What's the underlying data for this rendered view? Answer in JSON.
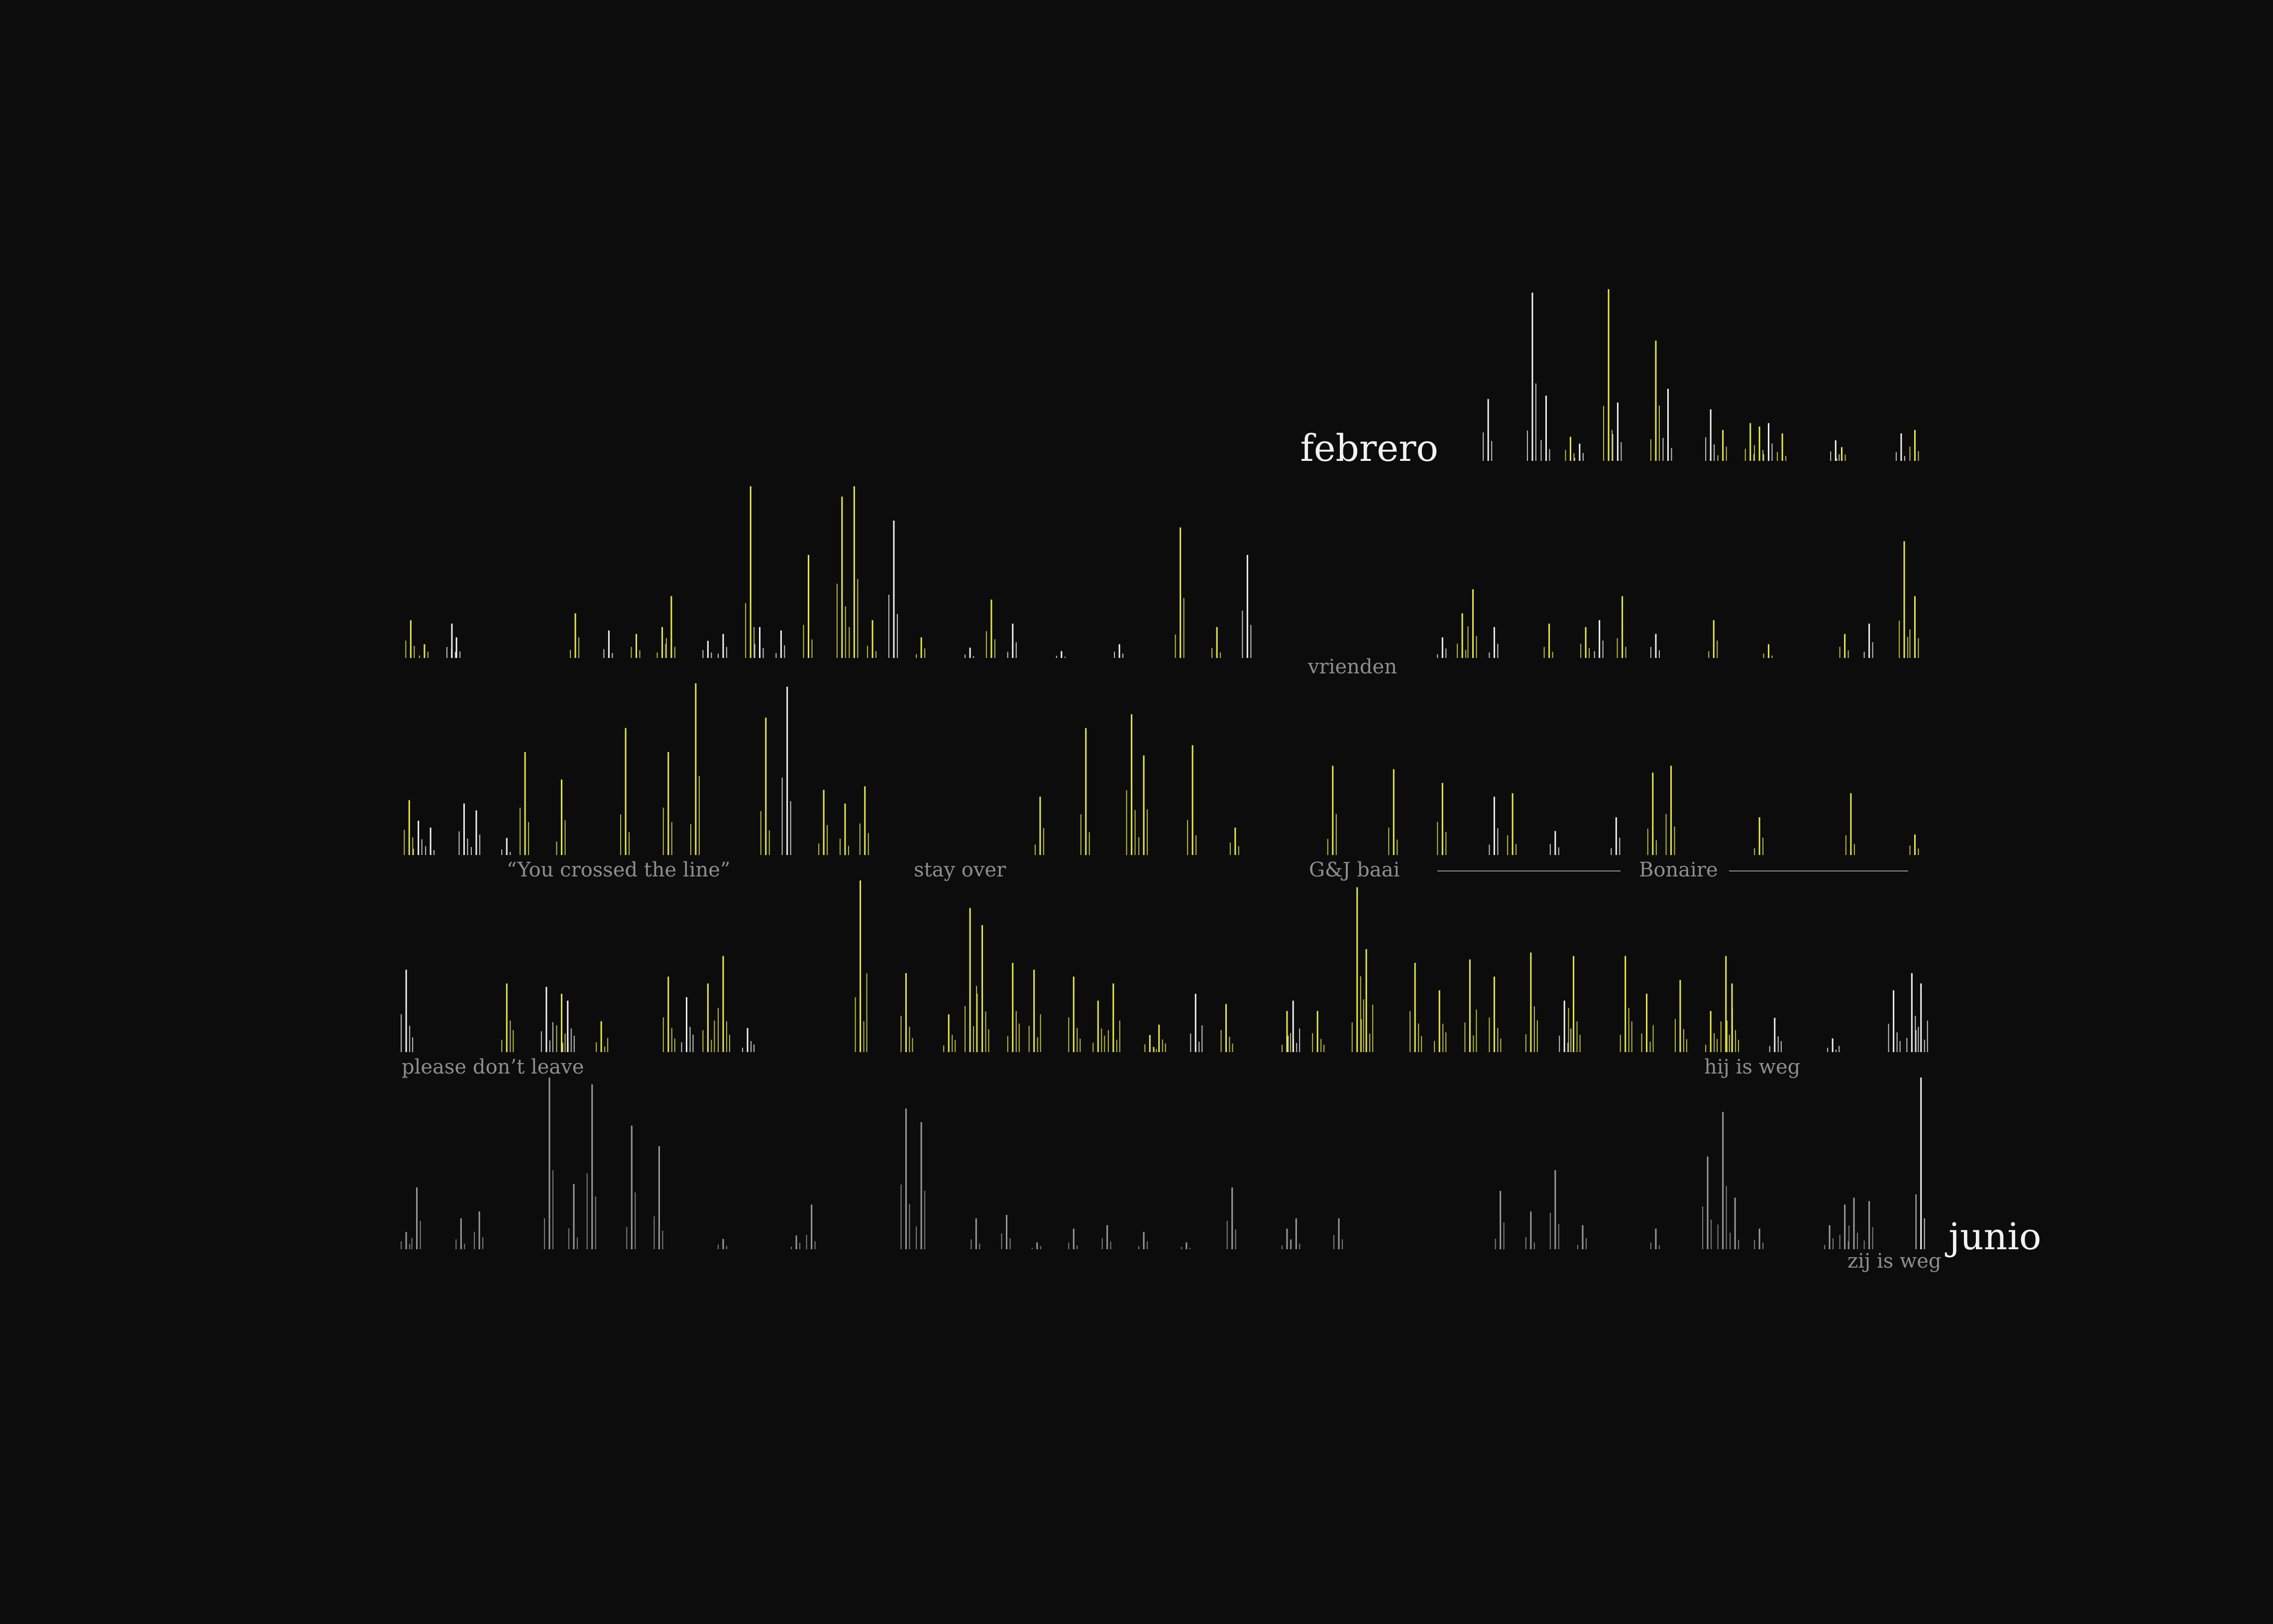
{
  "labels": {
    "month_start": "febrero",
    "month_end": "junio",
    "annotations": {
      "vrienden": "vrienden",
      "crossed": "“You crossed the line”",
      "stay_over": "stay over",
      "gj_baai": "G&J baai",
      "bonaire": "Bonaire",
      "please": "please don’t leave",
      "hij": "hij is weg",
      "zij": "zij is weg"
    }
  },
  "colors": {
    "background": "#0c0c0c",
    "yellow": "#e6e84a",
    "white": "#f0f0f0",
    "grey": "#9a9a9a",
    "label": "#8e8e8e",
    "month": "#f2f2f2"
  },
  "chart_data": {
    "type": "bar",
    "description": "Timeline barcode of daily activity from febrero to junio; each row is a span of days, each spike an event (height = intensity 0-100).",
    "rows": [
      {
        "start": 0.7,
        "spikes": [
          [
            0.712,
            36,
            "w"
          ],
          [
            0.741,
            98,
            "w"
          ],
          [
            0.75,
            38,
            "w"
          ],
          [
            0.766,
            14,
            "y"
          ],
          [
            0.772,
            10,
            "w"
          ],
          [
            0.791,
            100,
            "y"
          ],
          [
            0.797,
            34,
            "w"
          ],
          [
            0.822,
            70,
            "y"
          ],
          [
            0.83,
            42,
            "w"
          ],
          [
            0.858,
            30,
            "w"
          ],
          [
            0.866,
            18,
            "y"
          ],
          [
            0.884,
            22,
            "y"
          ],
          [
            0.89,
            20,
            "y"
          ],
          [
            0.896,
            22,
            "w"
          ],
          [
            0.905,
            16,
            "y"
          ],
          [
            0.94,
            12,
            "w"
          ],
          [
            0.944,
            8,
            "y"
          ],
          [
            0.983,
            16,
            "w"
          ],
          [
            0.992,
            18,
            "y"
          ]
        ]
      },
      {
        "start": 0.0,
        "spikes": [
          [
            0.005,
            22,
            "y"
          ],
          [
            0.014,
            8,
            "y"
          ],
          [
            0.032,
            20,
            "w"
          ],
          [
            0.035,
            12,
            "w"
          ],
          [
            0.113,
            26,
            "y"
          ],
          [
            0.135,
            16,
            "w"
          ],
          [
            0.153,
            14,
            "y"
          ],
          [
            0.17,
            18,
            "y"
          ],
          [
            0.176,
            36,
            "y"
          ],
          [
            0.2,
            10,
            "w"
          ],
          [
            0.21,
            14,
            "w"
          ],
          [
            0.228,
            100,
            "y"
          ],
          [
            0.234,
            18,
            "w"
          ],
          [
            0.248,
            16,
            "w"
          ],
          [
            0.266,
            60,
            "y"
          ],
          [
            0.288,
            94,
            "y"
          ],
          [
            0.296,
            100,
            "y"
          ],
          [
            0.308,
            22,
            "y"
          ],
          [
            0.322,
            80,
            "w"
          ],
          [
            0.34,
            12,
            "y"
          ],
          [
            0.372,
            6,
            "w"
          ],
          [
            0.386,
            34,
            "y"
          ],
          [
            0.4,
            20,
            "w"
          ],
          [
            0.432,
            4,
            "w"
          ],
          [
            0.47,
            8,
            "w"
          ],
          [
            0.51,
            76,
            "y"
          ],
          [
            0.534,
            18,
            "y"
          ],
          [
            0.554,
            60,
            "w"
          ],
          [
            0.682,
            12,
            "w"
          ],
          [
            0.695,
            26,
            "y"
          ],
          [
            0.702,
            40,
            "y"
          ],
          [
            0.716,
            18,
            "w"
          ],
          [
            0.752,
            20,
            "y"
          ],
          [
            0.776,
            18,
            "y"
          ],
          [
            0.785,
            22,
            "w"
          ],
          [
            0.8,
            36,
            "y"
          ],
          [
            0.822,
            14,
            "w"
          ],
          [
            0.86,
            22,
            "y"
          ],
          [
            0.896,
            8,
            "y"
          ],
          [
            0.946,
            14,
            "y"
          ],
          [
            0.962,
            20,
            "w"
          ],
          [
            0.985,
            68,
            "y"
          ],
          [
            0.992,
            36,
            "y"
          ]
        ]
      },
      {
        "start": 0.0,
        "spikes": [
          [
            0.004,
            32,
            "y"
          ],
          [
            0.01,
            20,
            "w"
          ],
          [
            0.018,
            16,
            "w"
          ],
          [
            0.04,
            30,
            "w"
          ],
          [
            0.048,
            26,
            "w"
          ],
          [
            0.068,
            10,
            "w"
          ],
          [
            0.08,
            60,
            "y"
          ],
          [
            0.104,
            44,
            "y"
          ],
          [
            0.146,
            74,
            "y"
          ],
          [
            0.174,
            60,
            "y"
          ],
          [
            0.192,
            100,
            "y"
          ],
          [
            0.238,
            80,
            "y"
          ],
          [
            0.252,
            98,
            "w"
          ],
          [
            0.276,
            38,
            "y"
          ],
          [
            0.29,
            30,
            "y"
          ],
          [
            0.303,
            40,
            "y"
          ],
          [
            0.418,
            34,
            "y"
          ],
          [
            0.448,
            74,
            "y"
          ],
          [
            0.478,
            82,
            "y"
          ],
          [
            0.486,
            58,
            "y"
          ],
          [
            0.518,
            64,
            "y"
          ],
          [
            0.546,
            16,
            "y"
          ],
          [
            0.61,
            52,
            "y"
          ],
          [
            0.65,
            50,
            "y"
          ],
          [
            0.682,
            42,
            "y"
          ],
          [
            0.716,
            34,
            "w"
          ],
          [
            0.728,
            36,
            "y"
          ],
          [
            0.756,
            14,
            "w"
          ],
          [
            0.796,
            22,
            "w"
          ],
          [
            0.82,
            48,
            "y"
          ],
          [
            0.832,
            52,
            "y"
          ],
          [
            0.89,
            22,
            "y"
          ],
          [
            0.95,
            36,
            "y"
          ],
          [
            0.992,
            12,
            "y"
          ]
        ]
      },
      {
        "start": 0.0,
        "spikes": [
          [
            0.002,
            48,
            "w"
          ],
          [
            0.068,
            40,
            "y"
          ],
          [
            0.094,
            38,
            "w"
          ],
          [
            0.104,
            34,
            "y"
          ],
          [
            0.108,
            30,
            "w"
          ],
          [
            0.13,
            18,
            "y"
          ],
          [
            0.174,
            44,
            "y"
          ],
          [
            0.186,
            32,
            "w"
          ],
          [
            0.2,
            40,
            "y"
          ],
          [
            0.21,
            56,
            "y"
          ],
          [
            0.226,
            14,
            "w"
          ],
          [
            0.3,
            100,
            "y"
          ],
          [
            0.33,
            46,
            "y"
          ],
          [
            0.358,
            22,
            "y"
          ],
          [
            0.372,
            84,
            "y"
          ],
          [
            0.38,
            74,
            "y"
          ],
          [
            0.4,
            52,
            "y"
          ],
          [
            0.414,
            48,
            "y"
          ],
          [
            0.44,
            44,
            "y"
          ],
          [
            0.456,
            30,
            "y"
          ],
          [
            0.466,
            40,
            "y"
          ],
          [
            0.49,
            10,
            "y"
          ],
          [
            0.496,
            16,
            "y"
          ],
          [
            0.52,
            34,
            "w"
          ],
          [
            0.54,
            28,
            "y"
          ],
          [
            0.58,
            24,
            "y"
          ],
          [
            0.584,
            30,
            "w"
          ],
          [
            0.6,
            24,
            "y"
          ],
          [
            0.626,
            96,
            "y"
          ],
          [
            0.632,
            60,
            "y"
          ],
          [
            0.664,
            52,
            "y"
          ],
          [
            0.68,
            36,
            "y"
          ],
          [
            0.7,
            54,
            "y"
          ],
          [
            0.716,
            44,
            "y"
          ],
          [
            0.74,
            58,
            "y"
          ],
          [
            0.762,
            30,
            "w"
          ],
          [
            0.768,
            56,
            "y"
          ],
          [
            0.802,
            56,
            "y"
          ],
          [
            0.816,
            34,
            "y"
          ],
          [
            0.838,
            42,
            "y"
          ],
          [
            0.858,
            24,
            "y"
          ],
          [
            0.868,
            56,
            "y"
          ],
          [
            0.872,
            40,
            "y"
          ],
          [
            0.9,
            20,
            "w"
          ],
          [
            0.938,
            8,
            "w"
          ],
          [
            0.978,
            36,
            "w"
          ],
          [
            0.99,
            46,
            "w"
          ],
          [
            0.996,
            40,
            "w"
          ]
        ]
      },
      {
        "start": 0.0,
        "spikes": [
          [
            0.002,
            10,
            "g"
          ],
          [
            0.009,
            36,
            "g"
          ],
          [
            0.038,
            18,
            "g"
          ],
          [
            0.05,
            22,
            "g"
          ],
          [
            0.096,
            100,
            "g"
          ],
          [
            0.112,
            38,
            "g"
          ],
          [
            0.124,
            96,
            "g"
          ],
          [
            0.15,
            72,
            "g"
          ],
          [
            0.168,
            60,
            "g"
          ],
          [
            0.21,
            6,
            "g"
          ],
          [
            0.258,
            8,
            "g"
          ],
          [
            0.268,
            26,
            "g"
          ],
          [
            0.33,
            82,
            "g"
          ],
          [
            0.34,
            74,
            "g"
          ],
          [
            0.376,
            18,
            "g"
          ],
          [
            0.396,
            20,
            "g"
          ],
          [
            0.416,
            4,
            "g"
          ],
          [
            0.44,
            12,
            "g"
          ],
          [
            0.462,
            14,
            "g"
          ],
          [
            0.486,
            10,
            "g"
          ],
          [
            0.514,
            4,
            "g"
          ],
          [
            0.544,
            36,
            "g"
          ],
          [
            0.58,
            12,
            "g"
          ],
          [
            0.586,
            18,
            "g"
          ],
          [
            0.614,
            18,
            "g"
          ],
          [
            0.72,
            34,
            "g"
          ],
          [
            0.74,
            22,
            "g"
          ],
          [
            0.756,
            46,
            "g"
          ],
          [
            0.774,
            14,
            "g"
          ],
          [
            0.822,
            12,
            "g"
          ],
          [
            0.856,
            54,
            "g"
          ],
          [
            0.866,
            80,
            "g"
          ],
          [
            0.874,
            30,
            "g"
          ],
          [
            0.89,
            12,
            "g"
          ],
          [
            0.936,
            14,
            "g"
          ],
          [
            0.946,
            26,
            "g"
          ],
          [
            0.952,
            30,
            "g"
          ],
          [
            0.962,
            28,
            "g"
          ],
          [
            0.996,
            100,
            "w"
          ]
        ]
      }
    ]
  }
}
